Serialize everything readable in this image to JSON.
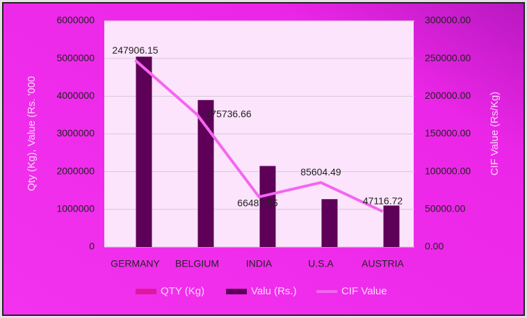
{
  "chart_data": {
    "type": "bar",
    "categories": [
      "GERMANY",
      "BELGIUM",
      "INDIA",
      "U.S.A",
      "AUSTRIA"
    ],
    "ylabel": "Qty (Kg), Value (Rs. '000",
    "y2label": "CIF Value (Rs/Kg)",
    "ylim": [
      0,
      6000000
    ],
    "yticks": [
      0,
      1000000,
      2000000,
      3000000,
      4000000,
      5000000,
      6000000
    ],
    "y2lim": [
      0,
      300000
    ],
    "y2ticks": [
      {
        "value": 0,
        "label": "0.00"
      },
      {
        "value": 50000,
        "label": "50000.00"
      },
      {
        "value": 100000,
        "label": "100000.00"
      },
      {
        "value": 150000,
        "label": "150000.00"
      },
      {
        "value": 200000,
        "label": "200000.00"
      },
      {
        "value": 250000,
        "label": "250000.00"
      },
      {
        "value": 300000,
        "label": "300000.00"
      }
    ],
    "grid": true,
    "legend": "bottom",
    "series": [
      {
        "name": "QTY (Kg)",
        "color": "#e0189c",
        "type": "bar",
        "values": [
          0,
          0,
          0,
          0,
          0
        ]
      },
      {
        "name": "Valu (Rs.)",
        "color": "#5e0058",
        "type": "bar",
        "values": [
          5050000,
          3900000,
          2150000,
          1270000,
          1100000
        ]
      },
      {
        "name": "CIF Value",
        "color": "#f466f0",
        "type": "line",
        "axis": "y2",
        "values": [
          247906.15,
          175736.66,
          66487.55,
          85604.49,
          47116.72
        ]
      }
    ]
  }
}
